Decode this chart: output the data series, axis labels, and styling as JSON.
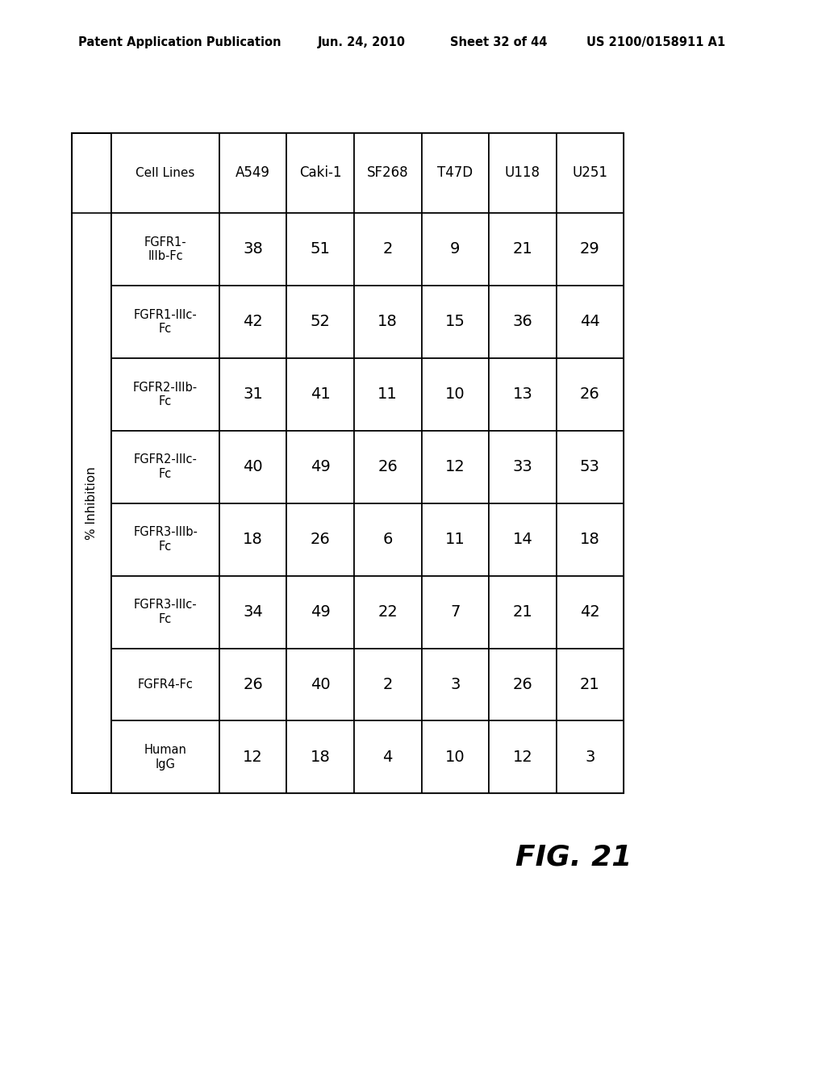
{
  "header_line1": "Patent Application Publication",
  "header_date": "Jun. 24, 2010",
  "header_sheet": "Sheet 32 of 44",
  "header_patent": "US 2100/0158911 A1",
  "figure_label": "FIG. 21",
  "table_title": "% Inhibition",
  "row_headers": [
    "Cell Lines",
    "FGFR1-\nIIIb-Fc",
    "FGFR1-IIIc-\nFc",
    "FGFR2-IIIb-\nFc",
    "FGFR2-IIIc-\nFc",
    "FGFR3-IIIb-\nFc",
    "FGFR3-IIIc-\nFc",
    "FGFR4-Fc",
    "Human\nIgG"
  ],
  "col_labels": [
    "A549",
    "Caki-1",
    "SF268",
    "T47D",
    "U118",
    "U251"
  ],
  "data": [
    [
      "38",
      "51",
      "2",
      "9",
      "21",
      "29"
    ],
    [
      "42",
      "52",
      "18",
      "15",
      "36",
      "44"
    ],
    [
      "31",
      "41",
      "11",
      "10",
      "13",
      "26"
    ],
    [
      "40",
      "49",
      "26",
      "12",
      "33",
      "53"
    ],
    [
      "18",
      "26",
      "6",
      "11",
      "14",
      "18"
    ],
    [
      "34",
      "49",
      "22",
      "7",
      "21",
      "42"
    ],
    [
      "26",
      "40",
      "2",
      "3",
      "26",
      "21"
    ],
    [
      "12",
      "18",
      "4",
      "10",
      "12",
      "3"
    ]
  ],
  "bg_color": "#ffffff",
  "border_color": "#000000",
  "text_color": "#000000"
}
